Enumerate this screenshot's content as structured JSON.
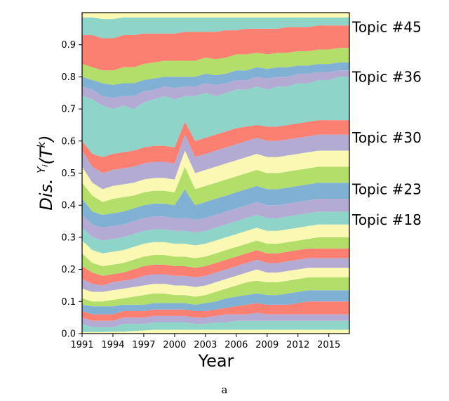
{
  "chart_data": {
    "type": "area",
    "stacked": true,
    "x": [
      1991,
      1992,
      1993,
      1994,
      1995,
      1996,
      1997,
      1998,
      1999,
      2000,
      2001,
      2002,
      2003,
      2004,
      2005,
      2006,
      2007,
      2008,
      2009,
      2010,
      2011,
      2012,
      2013,
      2014,
      2015,
      2016,
      2017
    ],
    "xticks": [
      "1991",
      "1994",
      "1997",
      "2000",
      "2003",
      "2006",
      "2009",
      "2012",
      "2015"
    ],
    "yticks": [
      "0.0",
      "0.1",
      "0.2",
      "0.3",
      "0.4",
      "0.5",
      "0.6",
      "0.7",
      "0.8",
      "0.9"
    ],
    "xlabel": "Year",
    "ylabel_main": "Dis. ",
    "ylabel_sup": "Y",
    "ylabel_sub": "i",
    "ylabel_tail": "(T",
    "ylabel_tail_sup": "k",
    "ylabel_close": ")",
    "xlim": [
      1991,
      2017
    ],
    "ylim": [
      0,
      1.0
    ],
    "series_colors": [
      "#fbf8b4",
      "#8fd4c8",
      "#b3abd3",
      "#fb8072",
      "#80b0d3",
      "#b3de69"
    ],
    "boundaries": [
      {
        "y": [
          0.005,
          0.005,
          0.005,
          0.006,
          0.006,
          0.008,
          0.01,
          0.012,
          0.012,
          0.012,
          0.012,
          0.012,
          0.012,
          0.012,
          0.012,
          0.012,
          0.012,
          0.012,
          0.012,
          0.012,
          0.012,
          0.012,
          0.012,
          0.012,
          0.012,
          0.012,
          0.012
        ]
      },
      {
        "y": [
          0.03,
          0.02,
          0.02,
          0.02,
          0.03,
          0.03,
          0.03,
          0.035,
          0.035,
          0.035,
          0.035,
          0.03,
          0.03,
          0.035,
          0.035,
          0.04,
          0.04,
          0.04,
          0.04,
          0.04,
          0.04,
          0.04,
          0.04,
          0.04,
          0.04,
          0.04,
          0.04
        ]
      },
      {
        "y": [
          0.05,
          0.04,
          0.04,
          0.04,
          0.05,
          0.05,
          0.05,
          0.055,
          0.055,
          0.055,
          0.055,
          0.05,
          0.05,
          0.055,
          0.06,
          0.06,
          0.06,
          0.065,
          0.06,
          0.06,
          0.06,
          0.06,
          0.06,
          0.06,
          0.06,
          0.06,
          0.06
        ]
      },
      {
        "y": [
          0.07,
          0.06,
          0.06,
          0.06,
          0.07,
          0.07,
          0.07,
          0.075,
          0.075,
          0.075,
          0.075,
          0.07,
          0.07,
          0.075,
          0.08,
          0.085,
          0.09,
          0.095,
          0.09,
          0.09,
          0.09,
          0.095,
          0.1,
          0.1,
          0.1,
          0.1,
          0.1
        ]
      },
      {
        "y": [
          0.09,
          0.085,
          0.085,
          0.085,
          0.09,
          0.09,
          0.09,
          0.095,
          0.095,
          0.095,
          0.095,
          0.09,
          0.095,
          0.1,
          0.11,
          0.115,
          0.12,
          0.125,
          0.12,
          0.12,
          0.125,
          0.13,
          0.135,
          0.135,
          0.135,
          0.135,
          0.135
        ]
      },
      {
        "y": [
          0.11,
          0.1,
          0.1,
          0.105,
          0.11,
          0.115,
          0.12,
          0.125,
          0.125,
          0.12,
          0.12,
          0.115,
          0.12,
          0.13,
          0.14,
          0.15,
          0.16,
          0.165,
          0.16,
          0.16,
          0.165,
          0.17,
          0.175,
          0.175,
          0.175,
          0.175,
          0.175
        ]
      },
      {
        "y": [
          0.14,
          0.13,
          0.13,
          0.135,
          0.14,
          0.145,
          0.15,
          0.155,
          0.155,
          0.15,
          0.15,
          0.145,
          0.15,
          0.16,
          0.17,
          0.18,
          0.19,
          0.2,
          0.19,
          0.19,
          0.195,
          0.2,
          0.205,
          0.205,
          0.205,
          0.205,
          0.205
        ]
      },
      {
        "y": [
          0.17,
          0.155,
          0.15,
          0.16,
          0.165,
          0.17,
          0.18,
          0.185,
          0.185,
          0.18,
          0.18,
          0.175,
          0.18,
          0.19,
          0.2,
          0.21,
          0.22,
          0.23,
          0.22,
          0.22,
          0.225,
          0.23,
          0.235,
          0.235,
          0.235,
          0.235,
          0.235
        ]
      },
      {
        "y": [
          0.21,
          0.19,
          0.18,
          0.185,
          0.19,
          0.2,
          0.21,
          0.215,
          0.215,
          0.21,
          0.21,
          0.205,
          0.21,
          0.22,
          0.23,
          0.24,
          0.25,
          0.26,
          0.25,
          0.25,
          0.255,
          0.26,
          0.265,
          0.265,
          0.265,
          0.265,
          0.265
        ]
      },
      {
        "y": [
          0.25,
          0.22,
          0.21,
          0.215,
          0.22,
          0.23,
          0.24,
          0.245,
          0.245,
          0.24,
          0.24,
          0.235,
          0.24,
          0.25,
          0.26,
          0.27,
          0.28,
          0.29,
          0.28,
          0.28,
          0.285,
          0.29,
          0.295,
          0.3,
          0.3,
          0.3,
          0.3
        ]
      },
      {
        "y": [
          0.29,
          0.26,
          0.25,
          0.255,
          0.26,
          0.27,
          0.28,
          0.285,
          0.285,
          0.28,
          0.28,
          0.275,
          0.28,
          0.29,
          0.3,
          0.31,
          0.32,
          0.33,
          0.32,
          0.32,
          0.325,
          0.33,
          0.335,
          0.34,
          0.34,
          0.34,
          0.34
        ]
      },
      {
        "y": [
          0.33,
          0.3,
          0.29,
          0.295,
          0.3,
          0.31,
          0.32,
          0.325,
          0.325,
          0.32,
          0.32,
          0.315,
          0.32,
          0.33,
          0.34,
          0.35,
          0.36,
          0.37,
          0.36,
          0.36,
          0.365,
          0.37,
          0.375,
          0.38,
          0.38,
          0.38,
          0.38
        ]
      },
      {
        "y": [
          0.37,
          0.34,
          0.33,
          0.335,
          0.34,
          0.35,
          0.36,
          0.365,
          0.365,
          0.36,
          0.36,
          0.355,
          0.36,
          0.37,
          0.38,
          0.39,
          0.4,
          0.41,
          0.4,
          0.4,
          0.405,
          0.41,
          0.415,
          0.42,
          0.42,
          0.42,
          0.42
        ]
      },
      {
        "y": [
          0.42,
          0.38,
          0.37,
          0.375,
          0.38,
          0.39,
          0.4,
          0.405,
          0.405,
          0.4,
          0.45,
          0.4,
          0.41,
          0.42,
          0.43,
          0.44,
          0.45,
          0.46,
          0.45,
          0.45,
          0.455,
          0.46,
          0.465,
          0.47,
          0.47,
          0.47,
          0.47
        ]
      },
      {
        "y": [
          0.47,
          0.43,
          0.41,
          0.42,
          0.425,
          0.43,
          0.44,
          0.445,
          0.445,
          0.44,
          0.52,
          0.45,
          0.46,
          0.47,
          0.48,
          0.49,
          0.5,
          0.51,
          0.5,
          0.5,
          0.505,
          0.51,
          0.515,
          0.52,
          0.52,
          0.52,
          0.52
        ]
      },
      {
        "y": [
          0.52,
          0.47,
          0.45,
          0.46,
          0.465,
          0.47,
          0.48,
          0.485,
          0.485,
          0.48,
          0.57,
          0.5,
          0.51,
          0.52,
          0.53,
          0.54,
          0.55,
          0.56,
          0.55,
          0.55,
          0.555,
          0.56,
          0.565,
          0.57,
          0.57,
          0.57,
          0.57
        ]
      },
      {
        "y": [
          0.57,
          0.52,
          0.5,
          0.51,
          0.515,
          0.52,
          0.53,
          0.535,
          0.535,
          0.53,
          0.62,
          0.55,
          0.56,
          0.57,
          0.58,
          0.59,
          0.6,
          0.61,
          0.6,
          0.6,
          0.605,
          0.61,
          0.615,
          0.62,
          0.62,
          0.62,
          0.62
        ]
      },
      {
        "y": [
          0.6,
          0.56,
          0.55,
          0.56,
          0.565,
          0.57,
          0.58,
          0.585,
          0.585,
          0.58,
          0.66,
          0.6,
          0.61,
          0.62,
          0.63,
          0.64,
          0.645,
          0.65,
          0.645,
          0.645,
          0.65,
          0.655,
          0.66,
          0.665,
          0.665,
          0.665,
          0.665
        ]
      },
      {
        "y": [
          0.74,
          0.73,
          0.71,
          0.7,
          0.71,
          0.7,
          0.72,
          0.73,
          0.74,
          0.73,
          0.74,
          0.74,
          0.75,
          0.74,
          0.75,
          0.76,
          0.76,
          0.77,
          0.76,
          0.77,
          0.77,
          0.78,
          0.78,
          0.79,
          0.79,
          0.8,
          0.8
        ]
      },
      {
        "y": [
          0.77,
          0.76,
          0.74,
          0.735,
          0.74,
          0.74,
          0.755,
          0.76,
          0.77,
          0.765,
          0.77,
          0.77,
          0.78,
          0.775,
          0.78,
          0.79,
          0.79,
          0.8,
          0.795,
          0.8,
          0.8,
          0.81,
          0.81,
          0.815,
          0.815,
          0.82,
          0.82
        ]
      },
      {
        "y": [
          0.8,
          0.79,
          0.78,
          0.775,
          0.78,
          0.78,
          0.79,
          0.795,
          0.8,
          0.8,
          0.8,
          0.8,
          0.81,
          0.805,
          0.81,
          0.82,
          0.82,
          0.83,
          0.825,
          0.83,
          0.83,
          0.835,
          0.835,
          0.84,
          0.84,
          0.845,
          0.845
        ]
      },
      {
        "y": [
          0.84,
          0.83,
          0.82,
          0.82,
          0.83,
          0.83,
          0.84,
          0.845,
          0.85,
          0.85,
          0.85,
          0.85,
          0.86,
          0.855,
          0.86,
          0.87,
          0.87,
          0.875,
          0.87,
          0.875,
          0.875,
          0.88,
          0.88,
          0.885,
          0.885,
          0.89,
          0.89
        ]
      },
      {
        "y": [
          0.93,
          0.93,
          0.92,
          0.92,
          0.93,
          0.93,
          0.935,
          0.935,
          0.935,
          0.935,
          0.94,
          0.94,
          0.94,
          0.94,
          0.945,
          0.945,
          0.95,
          0.95,
          0.95,
          0.95,
          0.955,
          0.955,
          0.955,
          0.96,
          0.96,
          0.96,
          0.96
        ]
      },
      {
        "y": [
          0.985,
          0.985,
          0.98,
          0.98,
          0.985,
          0.985,
          0.985,
          0.985,
          0.985,
          0.985,
          0.985,
          0.985,
          0.985,
          0.985,
          0.985,
          0.985,
          0.985,
          0.985,
          0.985,
          0.985,
          0.985,
          0.985,
          0.985,
          0.985,
          0.985,
          0.985,
          0.985
        ]
      },
      {
        "y": [
          1.0,
          1.0,
          1.0,
          1.0,
          1.0,
          1.0,
          1.0,
          1.0,
          1.0,
          1.0,
          1.0,
          1.0,
          1.0,
          1.0,
          1.0,
          1.0,
          1.0,
          1.0,
          1.0,
          1.0,
          1.0,
          1.0,
          1.0,
          1.0,
          1.0,
          1.0,
          1.0
        ]
      }
    ],
    "band_colors": [
      "#fbf8b4",
      "#8fd4c8",
      "#b3abd3",
      "#fb8072",
      "#80b0d3",
      "#b3de69",
      "#fbf8b4",
      "#b3abd3",
      "#fb8072",
      "#b3de69",
      "#fbf8b4",
      "#8fd4c8",
      "#b3abd3",
      "#80b0d3",
      "#b3de69",
      "#fbf8b4",
      "#b3abd3",
      "#fb8072",
      "#8fd4c8",
      "#b3abd3",
      "#80b0d3",
      "#b3de69",
      "#fb8072",
      "#8fd4c8",
      "#fbf8b4"
    ],
    "annotations": [
      {
        "text": "Topic #45",
        "y": 0.955
      },
      {
        "text": "Topic #36",
        "y": 0.8
      },
      {
        "text": "Topic #30",
        "y": 0.61
      },
      {
        "text": "Topic #23",
        "y": 0.45
      },
      {
        "text": "Topic #18",
        "y": 0.355
      }
    ],
    "grid": false
  },
  "caption": "a"
}
